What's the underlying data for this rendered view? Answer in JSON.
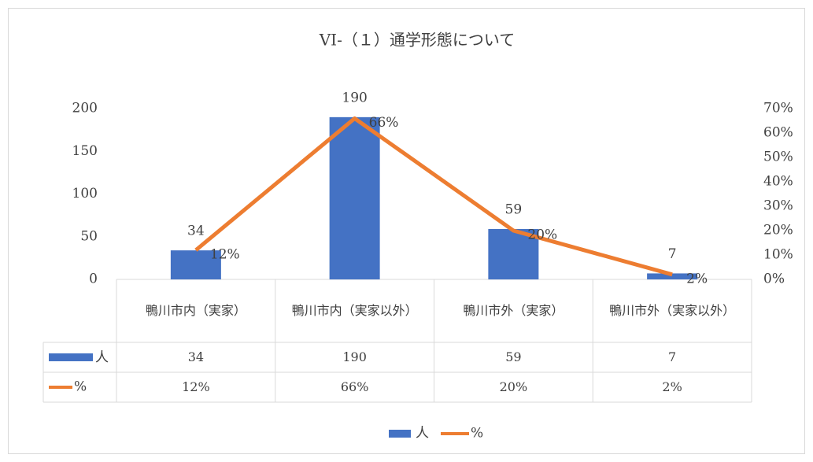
{
  "chart_data": {
    "type": "bar",
    "title": "VI-（１）通学形態について",
    "categories": [
      "鴨川市内（実家）",
      "鴨川市内（実家以外）",
      "鴨川市外（実家）",
      "鴨川市外（実家以外）"
    ],
    "series": [
      {
        "name": "人",
        "color": "#4472c4",
        "values": [
          34,
          190,
          59,
          7
        ]
      },
      {
        "name": "%",
        "color": "#ed7d31",
        "type": "line",
        "axis": "y2",
        "values": [
          12,
          66,
          20,
          2
        ],
        "value_labels": [
          "12%",
          "66%",
          "20%",
          "2%"
        ]
      }
    ],
    "ylim": [
      0,
      200
    ],
    "yticks": [
      0,
      50,
      100,
      150,
      200
    ],
    "y2lim": [
      0,
      70
    ],
    "y2ticks": [
      {
        "value": 0,
        "label": "0%"
      },
      {
        "value": 10,
        "label": "10%"
      },
      {
        "value": 20,
        "label": "20%"
      },
      {
        "value": 30,
        "label": "30%"
      },
      {
        "value": 40,
        "label": "40%"
      },
      {
        "value": 50,
        "label": "50%"
      },
      {
        "value": 60,
        "label": "60%"
      },
      {
        "value": 70,
        "label": "70%"
      }
    ],
    "grid": false,
    "legend": "bottom"
  }
}
